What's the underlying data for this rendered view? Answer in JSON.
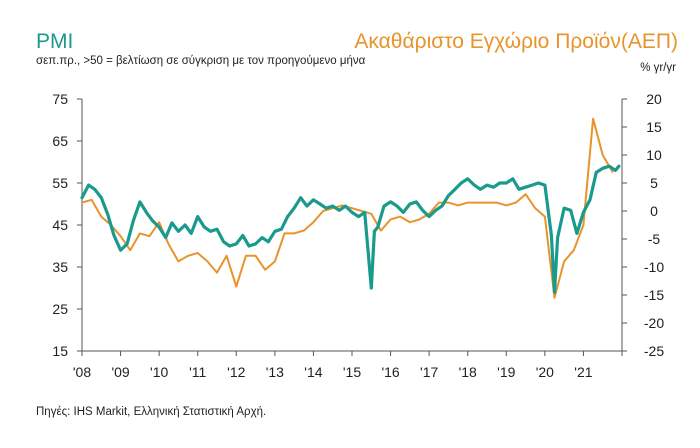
{
  "header": {
    "left_title": "PMI",
    "left_subtitle": "σεπ.πρ., >50 = βελτίωση σε σύγκριση με τον προηγούμενο μήνα",
    "right_title": "Ακαθάριστο Εγχώριο Προϊόν(ΑΕΠ)",
    "right_unit": "% γr/γr"
  },
  "footer": {
    "source": "Πηγές: IHS Markit, Ελληνική Στατιστική Αρχή."
  },
  "colors": {
    "pmi": "#1a9a8c",
    "gdp": "#e8932b",
    "axis": "#555555"
  },
  "chart_data": {
    "type": "line",
    "x_tick_labels": [
      "'08",
      "'09",
      "'10",
      "'11",
      "'12",
      "'13",
      "'14",
      "'15",
      "'16",
      "'17",
      "'18",
      "'19",
      "'20",
      "'21"
    ],
    "xlim": [
      2008.0,
      2022.0
    ],
    "y_left": {
      "ticks": [
        75,
        65,
        55,
        45,
        35,
        25,
        15
      ],
      "lim": [
        15,
        75
      ]
    },
    "y_right": {
      "ticks": [
        20,
        15,
        10,
        5,
        0,
        -5,
        -10,
        -15,
        -20,
        -25
      ],
      "lim": [
        -25,
        20
      ]
    },
    "grid": false,
    "legend": "titles",
    "series": [
      {
        "name": "PMI",
        "axis": "left",
        "x": [
          2008.0,
          2008.17,
          2008.33,
          2008.5,
          2008.67,
          2008.83,
          2009.0,
          2009.17,
          2009.33,
          2009.5,
          2009.67,
          2009.83,
          2010.0,
          2010.17,
          2010.33,
          2010.5,
          2010.67,
          2010.83,
          2011.0,
          2011.17,
          2011.33,
          2011.5,
          2011.67,
          2011.83,
          2012.0,
          2012.17,
          2012.33,
          2012.5,
          2012.67,
          2012.83,
          2013.0,
          2013.17,
          2013.33,
          2013.5,
          2013.67,
          2013.83,
          2014.0,
          2014.17,
          2014.33,
          2014.5,
          2014.67,
          2014.83,
          2015.0,
          2015.17,
          2015.33,
          2015.5,
          2015.58,
          2015.67,
          2015.83,
          2016.0,
          2016.17,
          2016.33,
          2016.5,
          2016.67,
          2016.83,
          2017.0,
          2017.17,
          2017.33,
          2017.5,
          2017.67,
          2017.83,
          2018.0,
          2018.17,
          2018.33,
          2018.5,
          2018.67,
          2018.83,
          2019.0,
          2019.17,
          2019.33,
          2019.5,
          2019.67,
          2019.83,
          2020.0,
          2020.17,
          2020.25,
          2020.33,
          2020.5,
          2020.67,
          2020.83,
          2021.0,
          2021.17,
          2021.33,
          2021.5,
          2021.67,
          2021.83,
          2021.92
        ],
        "values": [
          51.5,
          54.5,
          53.5,
          51.5,
          47.5,
          42.5,
          39.0,
          40.5,
          46.0,
          50.5,
          48.0,
          46.0,
          44.5,
          42.0,
          45.5,
          43.5,
          45.0,
          43.0,
          47.0,
          44.5,
          43.5,
          44.0,
          41.0,
          40.0,
          40.5,
          42.5,
          40.0,
          40.5,
          42.0,
          41.0,
          43.5,
          44.0,
          47.0,
          49.0,
          51.5,
          49.5,
          51.0,
          50.0,
          49.0,
          49.5,
          48.5,
          49.5,
          48.0,
          47.0,
          48.0,
          30.0,
          43.5,
          44.5,
          49.5,
          50.5,
          49.5,
          48.0,
          50.0,
          50.5,
          48.5,
          47.0,
          48.5,
          49.5,
          52.0,
          53.5,
          55.0,
          56.0,
          54.5,
          53.5,
          54.5,
          54.0,
          55.0,
          55.0,
          56.0,
          53.5,
          54.0,
          54.5,
          55.0,
          54.5,
          42.5,
          29.0,
          42.0,
          49.0,
          48.5,
          43.0,
          48.0,
          51.0,
          57.5,
          58.5,
          59.0,
          58.0,
          59.0
        ]
      },
      {
        "name": "ΑΕΠ",
        "axis": "right",
        "x": [
          2008.0,
          2008.25,
          2008.5,
          2008.75,
          2009.0,
          2009.25,
          2009.5,
          2009.75,
          2010.0,
          2010.25,
          2010.5,
          2010.75,
          2011.0,
          2011.25,
          2011.5,
          2011.75,
          2012.0,
          2012.25,
          2012.5,
          2012.75,
          2013.0,
          2013.25,
          2013.5,
          2013.75,
          2014.0,
          2014.25,
          2014.5,
          2014.75,
          2015.0,
          2015.25,
          2015.5,
          2015.75,
          2016.0,
          2016.25,
          2016.5,
          2016.75,
          2017.0,
          2017.25,
          2017.5,
          2017.75,
          2018.0,
          2018.25,
          2018.5,
          2018.75,
          2019.0,
          2019.25,
          2019.5,
          2019.75,
          2020.0,
          2020.25,
          2020.5,
          2020.75,
          2021.0,
          2021.25,
          2021.5,
          2021.75
        ],
        "values": [
          1.5,
          2.0,
          -1.0,
          -2.5,
          -4.5,
          -7.0,
          -4.0,
          -4.5,
          -2.0,
          -6.0,
          -9.0,
          -8.0,
          -7.5,
          -9.0,
          -11.0,
          -8.0,
          -13.5,
          -8.0,
          -8.0,
          -10.5,
          -9.0,
          -4.0,
          -4.0,
          -3.5,
          -2.0,
          0.0,
          0.5,
          1.0,
          0.5,
          0.0,
          -0.5,
          -3.5,
          -1.5,
          -1.0,
          -2.0,
          -1.5,
          -0.5,
          1.5,
          1.5,
          1.0,
          1.5,
          1.5,
          1.5,
          1.5,
          1.0,
          1.5,
          3.0,
          0.5,
          -1.0,
          -15.5,
          -9.0,
          -7.0,
          -2.5,
          16.5,
          10.0,
          7.0
        ]
      }
    ]
  }
}
